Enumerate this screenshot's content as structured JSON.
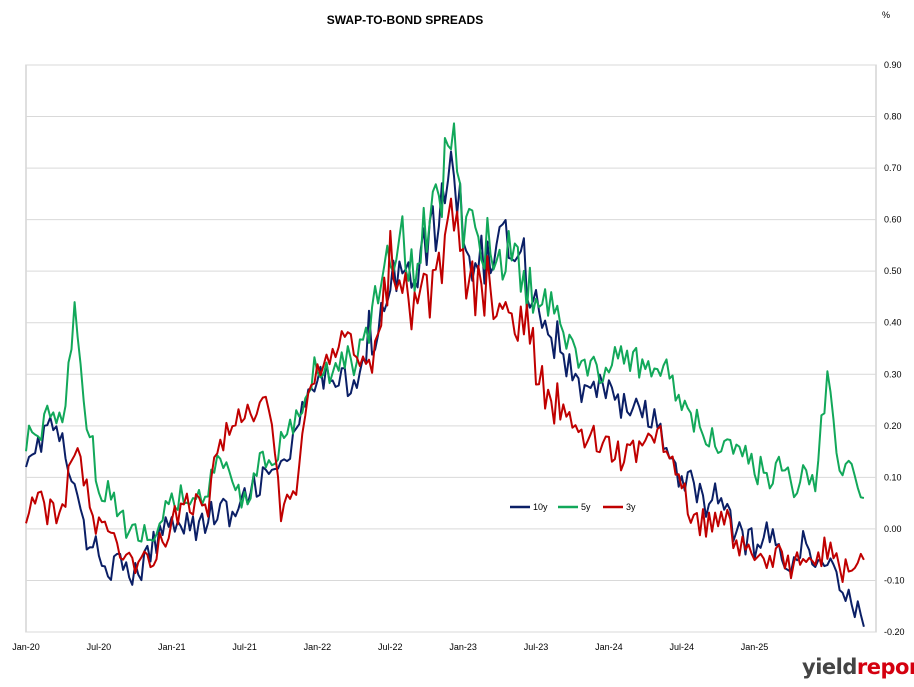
{
  "chart_data": {
    "type": "line",
    "title": "SWAP-TO-BOND SPREADS",
    "unit_label": "%",
    "y_axis_position": "right",
    "ylim": [
      -0.2,
      0.9
    ],
    "y_ticks": [
      "0.90",
      "0.80",
      "0.70",
      "0.60",
      "0.50",
      "0.40",
      "0.30",
      "0.20",
      "0.10",
      "0.00",
      "-0.10",
      "-0.20"
    ],
    "x_ticks": [
      "Jan-20",
      "Jul-20",
      "Jan-21",
      "Jul-21",
      "Jan-22",
      "Jul-22",
      "Jan-23",
      "Jul-23",
      "Jan-24",
      "Jul-24",
      "Jan-25"
    ],
    "x_range": [
      "2020-01",
      "2025-11"
    ],
    "grid": "horizontal",
    "legend_position": "center-right",
    "series": [
      {
        "name": "10y",
        "color": "#0b1f66",
        "points": [
          [
            "2020-01",
            0.15
          ],
          [
            "2020-02",
            0.16
          ],
          [
            "2020-03",
            0.21
          ],
          [
            "2020-04",
            0.16
          ],
          [
            "2020-05",
            0.07
          ],
          [
            "2020-06",
            -0.02
          ],
          [
            "2020-07",
            -0.05
          ],
          [
            "2020-08",
            -0.07
          ],
          [
            "2020-09",
            -0.08
          ],
          [
            "2020-10",
            -0.09
          ],
          [
            "2020-11",
            -0.06
          ],
          [
            "2020-12",
            -0.01
          ],
          [
            "2021-01",
            0.02
          ],
          [
            "2021-02",
            0.02
          ],
          [
            "2021-03",
            0.0
          ],
          [
            "2021-04",
            0.02
          ],
          [
            "2021-05",
            0.04
          ],
          [
            "2021-06",
            0.02
          ],
          [
            "2021-07",
            0.05
          ],
          [
            "2021-08",
            0.09
          ],
          [
            "2021-09",
            0.1
          ],
          [
            "2021-10",
            0.12
          ],
          [
            "2021-11",
            0.16
          ],
          [
            "2021-12",
            0.24
          ],
          [
            "2022-01",
            0.28
          ],
          [
            "2022-02",
            0.3
          ],
          [
            "2022-03",
            0.31
          ],
          [
            "2022-04",
            0.26
          ],
          [
            "2022-05",
            0.35
          ],
          [
            "2022-06",
            0.42
          ],
          [
            "2022-07",
            0.5
          ],
          [
            "2022-08",
            0.47
          ],
          [
            "2022-09",
            0.51
          ],
          [
            "2022-10",
            0.55
          ],
          [
            "2022-11",
            0.59
          ],
          [
            "2022-12",
            0.72
          ],
          [
            "2023-01",
            0.58
          ],
          [
            "2023-02",
            0.52
          ],
          [
            "2023-03",
            0.53
          ],
          [
            "2023-04",
            0.55
          ],
          [
            "2023-05",
            0.58
          ],
          [
            "2023-06",
            0.52
          ],
          [
            "2023-07",
            0.44
          ],
          [
            "2023-08",
            0.4
          ],
          [
            "2023-09",
            0.34
          ],
          [
            "2023-10",
            0.3
          ],
          [
            "2023-11",
            0.26
          ],
          [
            "2023-12",
            0.27
          ],
          [
            "2024-01",
            0.28
          ],
          [
            "2024-02",
            0.24
          ],
          [
            "2024-03",
            0.23
          ],
          [
            "2024-04",
            0.22
          ],
          [
            "2024-05",
            0.2
          ],
          [
            "2024-06",
            0.14
          ],
          [
            "2024-07",
            0.08
          ],
          [
            "2024-08",
            0.09
          ],
          [
            "2024-09",
            0.05
          ],
          [
            "2024-10",
            0.07
          ],
          [
            "2024-11",
            0.01
          ],
          [
            "2024-12",
            -0.02
          ],
          [
            "2025-01",
            -0.03
          ],
          [
            "2025-02",
            -0.01
          ],
          [
            "2025-03",
            -0.04
          ],
          [
            "2025-04",
            -0.06
          ],
          [
            "2025-05",
            -0.03
          ],
          [
            "2025-06",
            -0.08
          ],
          [
            "2025-07",
            -0.05
          ],
          [
            "2025-08",
            -0.1
          ],
          [
            "2025-09",
            -0.14
          ],
          [
            "2025-10",
            -0.19
          ]
        ]
      },
      {
        "name": "5y",
        "color": "#12a85a",
        "points": [
          [
            "2020-01",
            0.18
          ],
          [
            "2020-02",
            0.19
          ],
          [
            "2020-03",
            0.23
          ],
          [
            "2020-04",
            0.19
          ],
          [
            "2020-05",
            0.44
          ],
          [
            "2020-06",
            0.22
          ],
          [
            "2020-07",
            0.09
          ],
          [
            "2020-08",
            0.06
          ],
          [
            "2020-09",
            0.01
          ],
          [
            "2020-10",
            -0.02
          ],
          [
            "2020-11",
            -0.01
          ],
          [
            "2020-12",
            0.02
          ],
          [
            "2021-01",
            0.04
          ],
          [
            "2021-02",
            0.06
          ],
          [
            "2021-03",
            0.06
          ],
          [
            "2021-04",
            0.08
          ],
          [
            "2021-05",
            0.13
          ],
          [
            "2021-06",
            0.08
          ],
          [
            "2021-07",
            0.06
          ],
          [
            "2021-08",
            0.11
          ],
          [
            "2021-09",
            0.14
          ],
          [
            "2021-10",
            0.16
          ],
          [
            "2021-11",
            0.19
          ],
          [
            "2021-12",
            0.26
          ],
          [
            "2022-01",
            0.32
          ],
          [
            "2022-02",
            0.3
          ],
          [
            "2022-03",
            0.33
          ],
          [
            "2022-04",
            0.32
          ],
          [
            "2022-05",
            0.37
          ],
          [
            "2022-06",
            0.47
          ],
          [
            "2022-07",
            0.56
          ],
          [
            "2022-08",
            0.55
          ],
          [
            "2022-09",
            0.52
          ],
          [
            "2022-10",
            0.59
          ],
          [
            "2022-11",
            0.62
          ],
          [
            "2022-12",
            0.78
          ],
          [
            "2023-01",
            0.6
          ],
          [
            "2023-02",
            0.55
          ],
          [
            "2023-03",
            0.56
          ],
          [
            "2023-04",
            0.53
          ],
          [
            "2023-05",
            0.56
          ],
          [
            "2023-06",
            0.49
          ],
          [
            "2023-07",
            0.46
          ],
          [
            "2023-08",
            0.43
          ],
          [
            "2023-09",
            0.38
          ],
          [
            "2023-10",
            0.35
          ],
          [
            "2023-11",
            0.33
          ],
          [
            "2023-12",
            0.31
          ],
          [
            "2024-01",
            0.32
          ],
          [
            "2024-02",
            0.35
          ],
          [
            "2024-03",
            0.33
          ],
          [
            "2024-04",
            0.3
          ],
          [
            "2024-05",
            0.31
          ],
          [
            "2024-06",
            0.3
          ],
          [
            "2024-07",
            0.25
          ],
          [
            "2024-08",
            0.21
          ],
          [
            "2024-09",
            0.19
          ],
          [
            "2024-10",
            0.17
          ],
          [
            "2024-11",
            0.18
          ],
          [
            "2024-12",
            0.15
          ],
          [
            "2025-01",
            0.12
          ],
          [
            "2025-02",
            0.1
          ],
          [
            "2025-03",
            0.13
          ],
          [
            "2025-04",
            0.08
          ],
          [
            "2025-05",
            0.11
          ],
          [
            "2025-06",
            0.09
          ],
          [
            "2025-07",
            0.3
          ],
          [
            "2025-08",
            0.12
          ],
          [
            "2025-09",
            0.14
          ],
          [
            "2025-10",
            0.06
          ]
        ]
      },
      {
        "name": "3y",
        "color": "#c00000",
        "points": [
          [
            "2020-01",
            0.04
          ],
          [
            "2020-02",
            0.05
          ],
          [
            "2020-03",
            0.03
          ],
          [
            "2020-04",
            0.04
          ],
          [
            "2020-05",
            0.16
          ],
          [
            "2020-06",
            0.07
          ],
          [
            "2020-07",
            0.0
          ],
          [
            "2020-08",
            -0.03
          ],
          [
            "2020-09",
            -0.05
          ],
          [
            "2020-10",
            -0.06
          ],
          [
            "2020-11",
            -0.06
          ],
          [
            "2020-12",
            -0.03
          ],
          [
            "2021-01",
            0.02
          ],
          [
            "2021-02",
            0.04
          ],
          [
            "2021-03",
            0.05
          ],
          [
            "2021-04",
            0.05
          ],
          [
            "2021-05",
            0.17
          ],
          [
            "2021-06",
            0.19
          ],
          [
            "2021-07",
            0.22
          ],
          [
            "2021-08",
            0.21
          ],
          [
            "2021-09",
            0.25
          ],
          [
            "2021-10",
            0.03
          ],
          [
            "2021-11",
            0.05
          ],
          [
            "2021-12",
            0.23
          ],
          [
            "2022-01",
            0.3
          ],
          [
            "2022-02",
            0.34
          ],
          [
            "2022-03",
            0.36
          ],
          [
            "2022-04",
            0.35
          ],
          [
            "2022-05",
            0.31
          ],
          [
            "2022-06",
            0.4
          ],
          [
            "2022-07",
            0.52
          ],
          [
            "2022-08",
            0.49
          ],
          [
            "2022-09",
            0.43
          ],
          [
            "2022-10",
            0.44
          ],
          [
            "2022-11",
            0.48
          ],
          [
            "2022-12",
            0.62
          ],
          [
            "2023-01",
            0.52
          ],
          [
            "2023-02",
            0.46
          ],
          [
            "2023-03",
            0.47
          ],
          [
            "2023-04",
            0.45
          ],
          [
            "2023-05",
            0.44
          ],
          [
            "2023-06",
            0.4
          ],
          [
            "2023-07",
            0.33
          ],
          [
            "2023-08",
            0.28
          ],
          [
            "2023-09",
            0.24
          ],
          [
            "2023-10",
            0.21
          ],
          [
            "2023-11",
            0.18
          ],
          [
            "2023-12",
            0.18
          ],
          [
            "2024-01",
            0.16
          ],
          [
            "2024-02",
            0.14
          ],
          [
            "2024-03",
            0.15
          ],
          [
            "2024-04",
            0.18
          ],
          [
            "2024-05",
            0.19
          ],
          [
            "2024-06",
            0.15
          ],
          [
            "2024-07",
            0.08
          ],
          [
            "2024-08",
            0.01
          ],
          [
            "2024-09",
            0.01
          ],
          [
            "2024-10",
            0.03
          ],
          [
            "2024-11",
            0.0
          ],
          [
            "2024-12",
            -0.04
          ],
          [
            "2025-01",
            -0.06
          ],
          [
            "2025-02",
            -0.07
          ],
          [
            "2025-03",
            -0.04
          ],
          [
            "2025-04",
            -0.08
          ],
          [
            "2025-05",
            -0.06
          ],
          [
            "2025-06",
            -0.09
          ],
          [
            "2025-07",
            -0.03
          ],
          [
            "2025-08",
            -0.08
          ],
          [
            "2025-09",
            -0.06
          ],
          [
            "2025-10",
            -0.06
          ]
        ]
      }
    ]
  },
  "logo": {
    "text_main": "yield",
    "text_accent": "report"
  }
}
